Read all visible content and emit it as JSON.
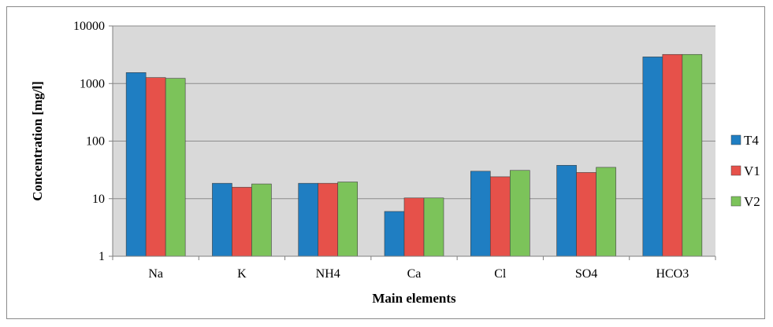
{
  "chart_data": {
    "type": "bar",
    "title": "",
    "xlabel": "Main elements",
    "ylabel": "Concentration [mg/l]",
    "yscale": "log",
    "ylim": [
      1,
      10000
    ],
    "yticks": [
      1,
      10,
      100,
      1000,
      10000
    ],
    "ytick_labels": [
      "1",
      "10",
      "100",
      "1000",
      "10000"
    ],
    "grid": "horizontal",
    "plot_background": "#d9d9d9",
    "legend_position": "right",
    "categories": [
      "Na",
      "K",
      "NH4",
      "Ca",
      "Cl",
      "SO4",
      "HCO3"
    ],
    "series": [
      {
        "name": "T4",
        "color": "#1f7ec2",
        "values": [
          1550,
          18.5,
          18.5,
          6,
          30,
          38,
          2900
        ]
      },
      {
        "name": "V1",
        "color": "#e6514a",
        "values": [
          1270,
          15.8,
          18.5,
          10.3,
          24,
          28.5,
          3200
        ]
      },
      {
        "name": "V2",
        "color": "#7cc35a",
        "values": [
          1230,
          18,
          19.5,
          10.3,
          31,
          35,
          3200
        ]
      }
    ]
  }
}
